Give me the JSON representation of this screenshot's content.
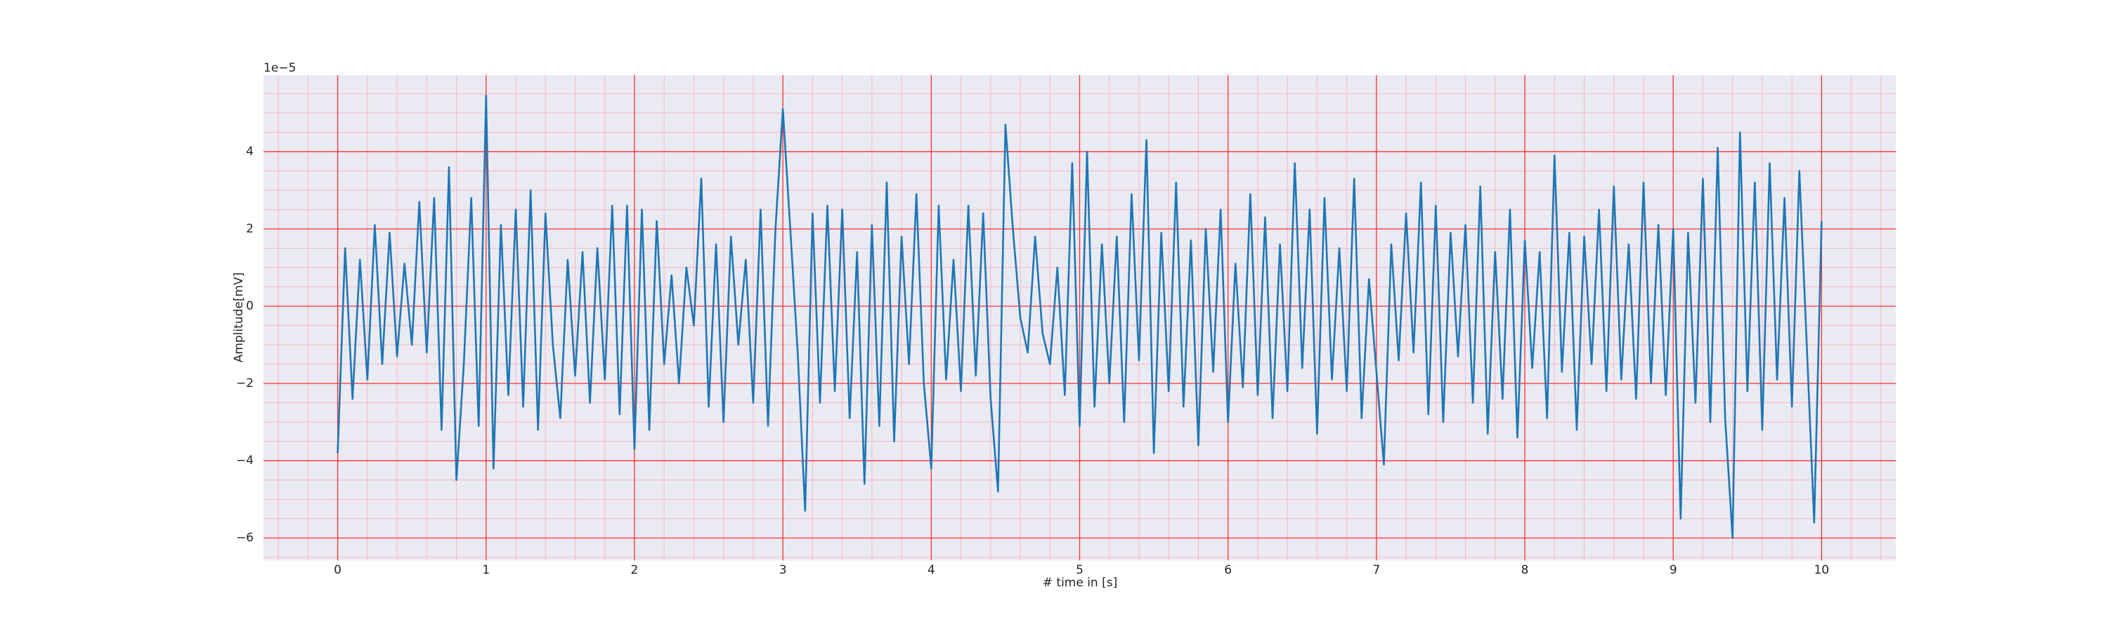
{
  "chart_data": {
    "type": "line",
    "xlabel": "# time in [s]",
    "ylabel": "Amplitude[mV]",
    "offset_text": "1e−5",
    "color": "#1f77b4",
    "background": "#eaeaf2",
    "grid": true,
    "grid_color": "#ff3030",
    "minor_grid": true,
    "minor_grid_color": "#f6b8bf",
    "xlim": [
      -0.5,
      10.5
    ],
    "xticks": [
      0,
      1,
      2,
      3,
      4,
      5,
      6,
      7,
      8,
      9,
      10
    ],
    "xminorticks": [
      -0.4,
      -0.2,
      0.2,
      0.4,
      0.6,
      0.8,
      1.2,
      1.4,
      1.6,
      1.8,
      2.2,
      2.4,
      2.6,
      2.8,
      3.2,
      3.4,
      3.6,
      3.8,
      4.2,
      4.4,
      4.6,
      4.8,
      5.2,
      5.4,
      5.6,
      5.8,
      6.2,
      6.4,
      6.6,
      6.8,
      7.2,
      7.4,
      7.6,
      7.8,
      8.2,
      8.4,
      8.6,
      8.8,
      9.2,
      9.4,
      9.6,
      9.8,
      10.2,
      10.4
    ],
    "ylim": [
      -6.58,
      5.98
    ],
    "yticks": [
      {
        "value": -6,
        "label": "−6"
      },
      {
        "value": -4,
        "label": "−4"
      },
      {
        "value": -2,
        "label": "−2"
      },
      0,
      2,
      4
    ],
    "yminorticks": [
      -6.5,
      -5.5,
      -5,
      -4.5,
      -3.5,
      -3,
      -2.5,
      -1.5,
      -1,
      -0.5,
      0.5,
      1,
      1.5,
      2.5,
      3,
      3.5,
      4.5,
      5,
      5.5
    ],
    "x": [
      0,
      0.05,
      0.1,
      0.15,
      0.2,
      0.25,
      0.3,
      0.35,
      0.4,
      0.45,
      0.5,
      0.55,
      0.6,
      0.65,
      0.7,
      0.75,
      0.8,
      0.85,
      0.9,
      0.95,
      1,
      1.05,
      1.1,
      1.15,
      1.2,
      1.25,
      1.3,
      1.35,
      1.4,
      1.45,
      1.5,
      1.55,
      1.6,
      1.65,
      1.7,
      1.75,
      1.8,
      1.85,
      1.9,
      1.95,
      2,
      2.05,
      2.1,
      2.15,
      2.2,
      2.25,
      2.3,
      2.35,
      2.4,
      2.45,
      2.5,
      2.55,
      2.6,
      2.65,
      2.7,
      2.75,
      2.8,
      2.85,
      2.9,
      2.95,
      3,
      3.05,
      3.1,
      3.15,
      3.2,
      3.25,
      3.3,
      3.35,
      3.4,
      3.45,
      3.5,
      3.55,
      3.6,
      3.65,
      3.7,
      3.75,
      3.8,
      3.85,
      3.9,
      3.95,
      4,
      4.05,
      4.1,
      4.15,
      4.2,
      4.25,
      4.3,
      4.35,
      4.4,
      4.45,
      4.5,
      4.55,
      4.6,
      4.65,
      4.7,
      4.75,
      4.8,
      4.85,
      4.9,
      4.95,
      5,
      5.05,
      5.1,
      5.15,
      5.2,
      5.25,
      5.3,
      5.35,
      5.4,
      5.45,
      5.5,
      5.55,
      5.6,
      5.65,
      5.7,
      5.75,
      5.8,
      5.85,
      5.9,
      5.95,
      6,
      6.05,
      6.1,
      6.15,
      6.2,
      6.25,
      6.3,
      6.35,
      6.4,
      6.45,
      6.5,
      6.55,
      6.6,
      6.65,
      6.7,
      6.75,
      6.8,
      6.85,
      6.9,
      6.95,
      7,
      7.05,
      7.1,
      7.15,
      7.2,
      7.25,
      7.3,
      7.35,
      7.4,
      7.45,
      7.5,
      7.55,
      7.6,
      7.65,
      7.7,
      7.75,
      7.8,
      7.85,
      7.9,
      7.95,
      8,
      8.05,
      8.1,
      8.15,
      8.2,
      8.25,
      8.3,
      8.35,
      8.4,
      8.45,
      8.5,
      8.55,
      8.6,
      8.65,
      8.7,
      8.75,
      8.8,
      8.85,
      8.9,
      8.95,
      9,
      9.05,
      9.1,
      9.15,
      9.2,
      9.25,
      9.3,
      9.35,
      9.4,
      9.45,
      9.5,
      9.55,
      9.6,
      9.65,
      9.7,
      9.75,
      9.8,
      9.85,
      9.9,
      9.95,
      10
    ],
    "values": [
      -3.8,
      1.5,
      -2.4,
      1.2,
      -1.9,
      2.1,
      -1.5,
      1.9,
      -1.3,
      1.1,
      -1.0,
      2.7,
      -1.2,
      2.8,
      -3.2,
      3.6,
      -4.5,
      -1.5,
      2.8,
      -3.1,
      5.45,
      -4.2,
      2.1,
      -2.3,
      2.5,
      -2.6,
      3.0,
      -3.2,
      2.4,
      -1.0,
      -2.9,
      1.2,
      -1.8,
      1.4,
      -2.5,
      1.5,
      -1.9,
      2.6,
      -2.8,
      2.6,
      -3.7,
      2.5,
      -3.2,
      2.2,
      -1.5,
      0.8,
      -2.0,
      1.0,
      -0.5,
      3.3,
      -2.6,
      1.6,
      -3.0,
      1.8,
      -1.0,
      1.2,
      -2.5,
      2.5,
      -3.1,
      2.0,
      5.1,
      2.0,
      -1.2,
      -5.3,
      2.4,
      -2.5,
      2.6,
      -2.2,
      2.5,
      -2.9,
      1.4,
      -4.6,
      2.1,
      -3.1,
      3.2,
      -3.5,
      1.8,
      -1.5,
      2.9,
      -2.0,
      -4.2,
      2.6,
      -1.9,
      1.2,
      -2.2,
      2.6,
      -1.8,
      2.4,
      -2.4,
      -4.8,
      4.7,
      2.0,
      -0.3,
      -1.2,
      1.8,
      -0.7,
      -1.5,
      1.0,
      -2.3,
      3.7,
      -3.1,
      4.0,
      -2.6,
      1.6,
      -2.0,
      1.8,
      -3.0,
      2.9,
      -1.4,
      4.3,
      -3.8,
      1.9,
      -2.2,
      3.2,
      -2.6,
      1.7,
      -3.6,
      2.0,
      -1.7,
      2.5,
      -3.0,
      1.1,
      -2.1,
      2.9,
      -2.3,
      2.3,
      -2.9,
      1.6,
      -2.2,
      3.7,
      -1.6,
      2.5,
      -3.3,
      2.8,
      -1.9,
      1.5,
      -2.2,
      3.3,
      -2.9,
      0.7,
      -1.7,
      -4.1,
      1.6,
      -1.4,
      2.4,
      -1.2,
      3.2,
      -2.8,
      2.6,
      -3.0,
      1.9,
      -1.3,
      2.1,
      -2.5,
      3.1,
      -3.3,
      1.4,
      -2.4,
      2.5,
      -3.4,
      1.7,
      -1.6,
      1.4,
      -2.9,
      3.9,
      -1.7,
      1.9,
      -3.2,
      1.8,
      -1.5,
      2.5,
      -2.2,
      3.1,
      -1.9,
      1.6,
      -2.4,
      3.2,
      -2.0,
      2.1,
      -2.3,
      2.0,
      -5.5,
      1.9,
      -2.5,
      3.3,
      -3.0,
      4.1,
      -2.9,
      -6.0,
      4.5,
      -2.2,
      3.2,
      -3.2,
      3.7,
      -1.9,
      2.8,
      -2.6,
      3.5,
      -1.0,
      -5.6,
      2.2
    ]
  }
}
